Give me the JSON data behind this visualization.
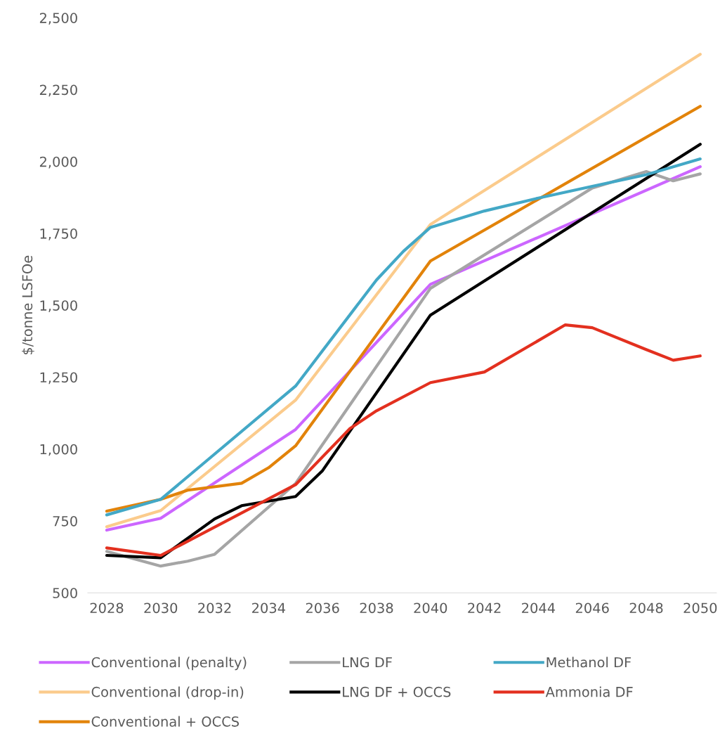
{
  "chart_data": {
    "type": "line",
    "ylabel": "$/tonne LSFOe",
    "xlim": [
      2027.3,
      2050.6
    ],
    "xticks": [
      2028,
      2030,
      2032,
      2034,
      2036,
      2038,
      2040,
      2042,
      2044,
      2046,
      2048,
      2050
    ],
    "ylim": [
      500,
      2500
    ],
    "yticks": [
      {
        "value": 500,
        "label": "500"
      },
      {
        "value": 750,
        "label": "750"
      },
      {
        "value": 1000,
        "label": "1,000"
      },
      {
        "value": 1250,
        "label": "1,250"
      },
      {
        "value": 1500,
        "label": "1,500"
      },
      {
        "value": 1750,
        "label": "1,750"
      },
      {
        "value": 2000,
        "label": "2,000"
      },
      {
        "value": 2250,
        "label": "2,250"
      },
      {
        "value": 2500,
        "label": "2,500"
      }
    ],
    "grid": false,
    "legend": "bottom",
    "marker": "none",
    "line_style": "solid",
    "series": [
      {
        "name": "Conventional (penalty)",
        "color": "#cc66ff",
        "x": [
          2028,
          2030,
          2035,
          2040,
          2050
        ],
        "values": [
          718,
          759,
          1068,
          1573,
          1982
        ]
      },
      {
        "name": "Conventional (drop-in)",
        "color": "#fbcb8c",
        "x": [
          2028,
          2030,
          2035,
          2040,
          2050
        ],
        "values": [
          730,
          786,
          1170,
          1781,
          2373
        ]
      },
      {
        "name": "Conventional + OCCS",
        "color": "#e2830a",
        "x": [
          2028,
          2030,
          2031,
          2033,
          2034,
          2035,
          2040,
          2050
        ],
        "values": [
          784,
          825,
          857,
          881,
          935,
          1011,
          1654,
          2192
        ]
      },
      {
        "name": "LNG DF",
        "color": "#a5a5a5",
        "x": [
          2028,
          2030,
          2031,
          2032,
          2035,
          2040,
          2046,
          2048,
          2049,
          2050
        ],
        "values": [
          644,
          593,
          610,
          634,
          880,
          1559,
          1908,
          1965,
          1933,
          1957
        ]
      },
      {
        "name": "LNG DF + OCCS",
        "color": "#000000",
        "x": [
          2028,
          2030,
          2032,
          2033,
          2035,
          2036,
          2040,
          2050
        ],
        "values": [
          630,
          622,
          757,
          803,
          835,
          925,
          1466,
          2060
        ]
      },
      {
        "name": "Methanol DF",
        "color": "#43a8c6",
        "x": [
          2028,
          2030,
          2035,
          2038,
          2039,
          2040,
          2042,
          2044,
          2046,
          2048,
          2050
        ],
        "values": [
          771,
          825,
          1219,
          1588,
          1688,
          1771,
          1828,
          1873,
          1914,
          1954,
          2009
        ]
      },
      {
        "name": "Ammonia DF",
        "color": "#e3301f",
        "x": [
          2028,
          2030,
          2035,
          2037,
          2038,
          2040,
          2042,
          2045,
          2046,
          2048,
          2049,
          2050
        ],
        "values": [
          656,
          630,
          876,
          1070,
          1133,
          1231,
          1268,
          1432,
          1422,
          1346,
          1309,
          1324
        ]
      }
    ]
  }
}
